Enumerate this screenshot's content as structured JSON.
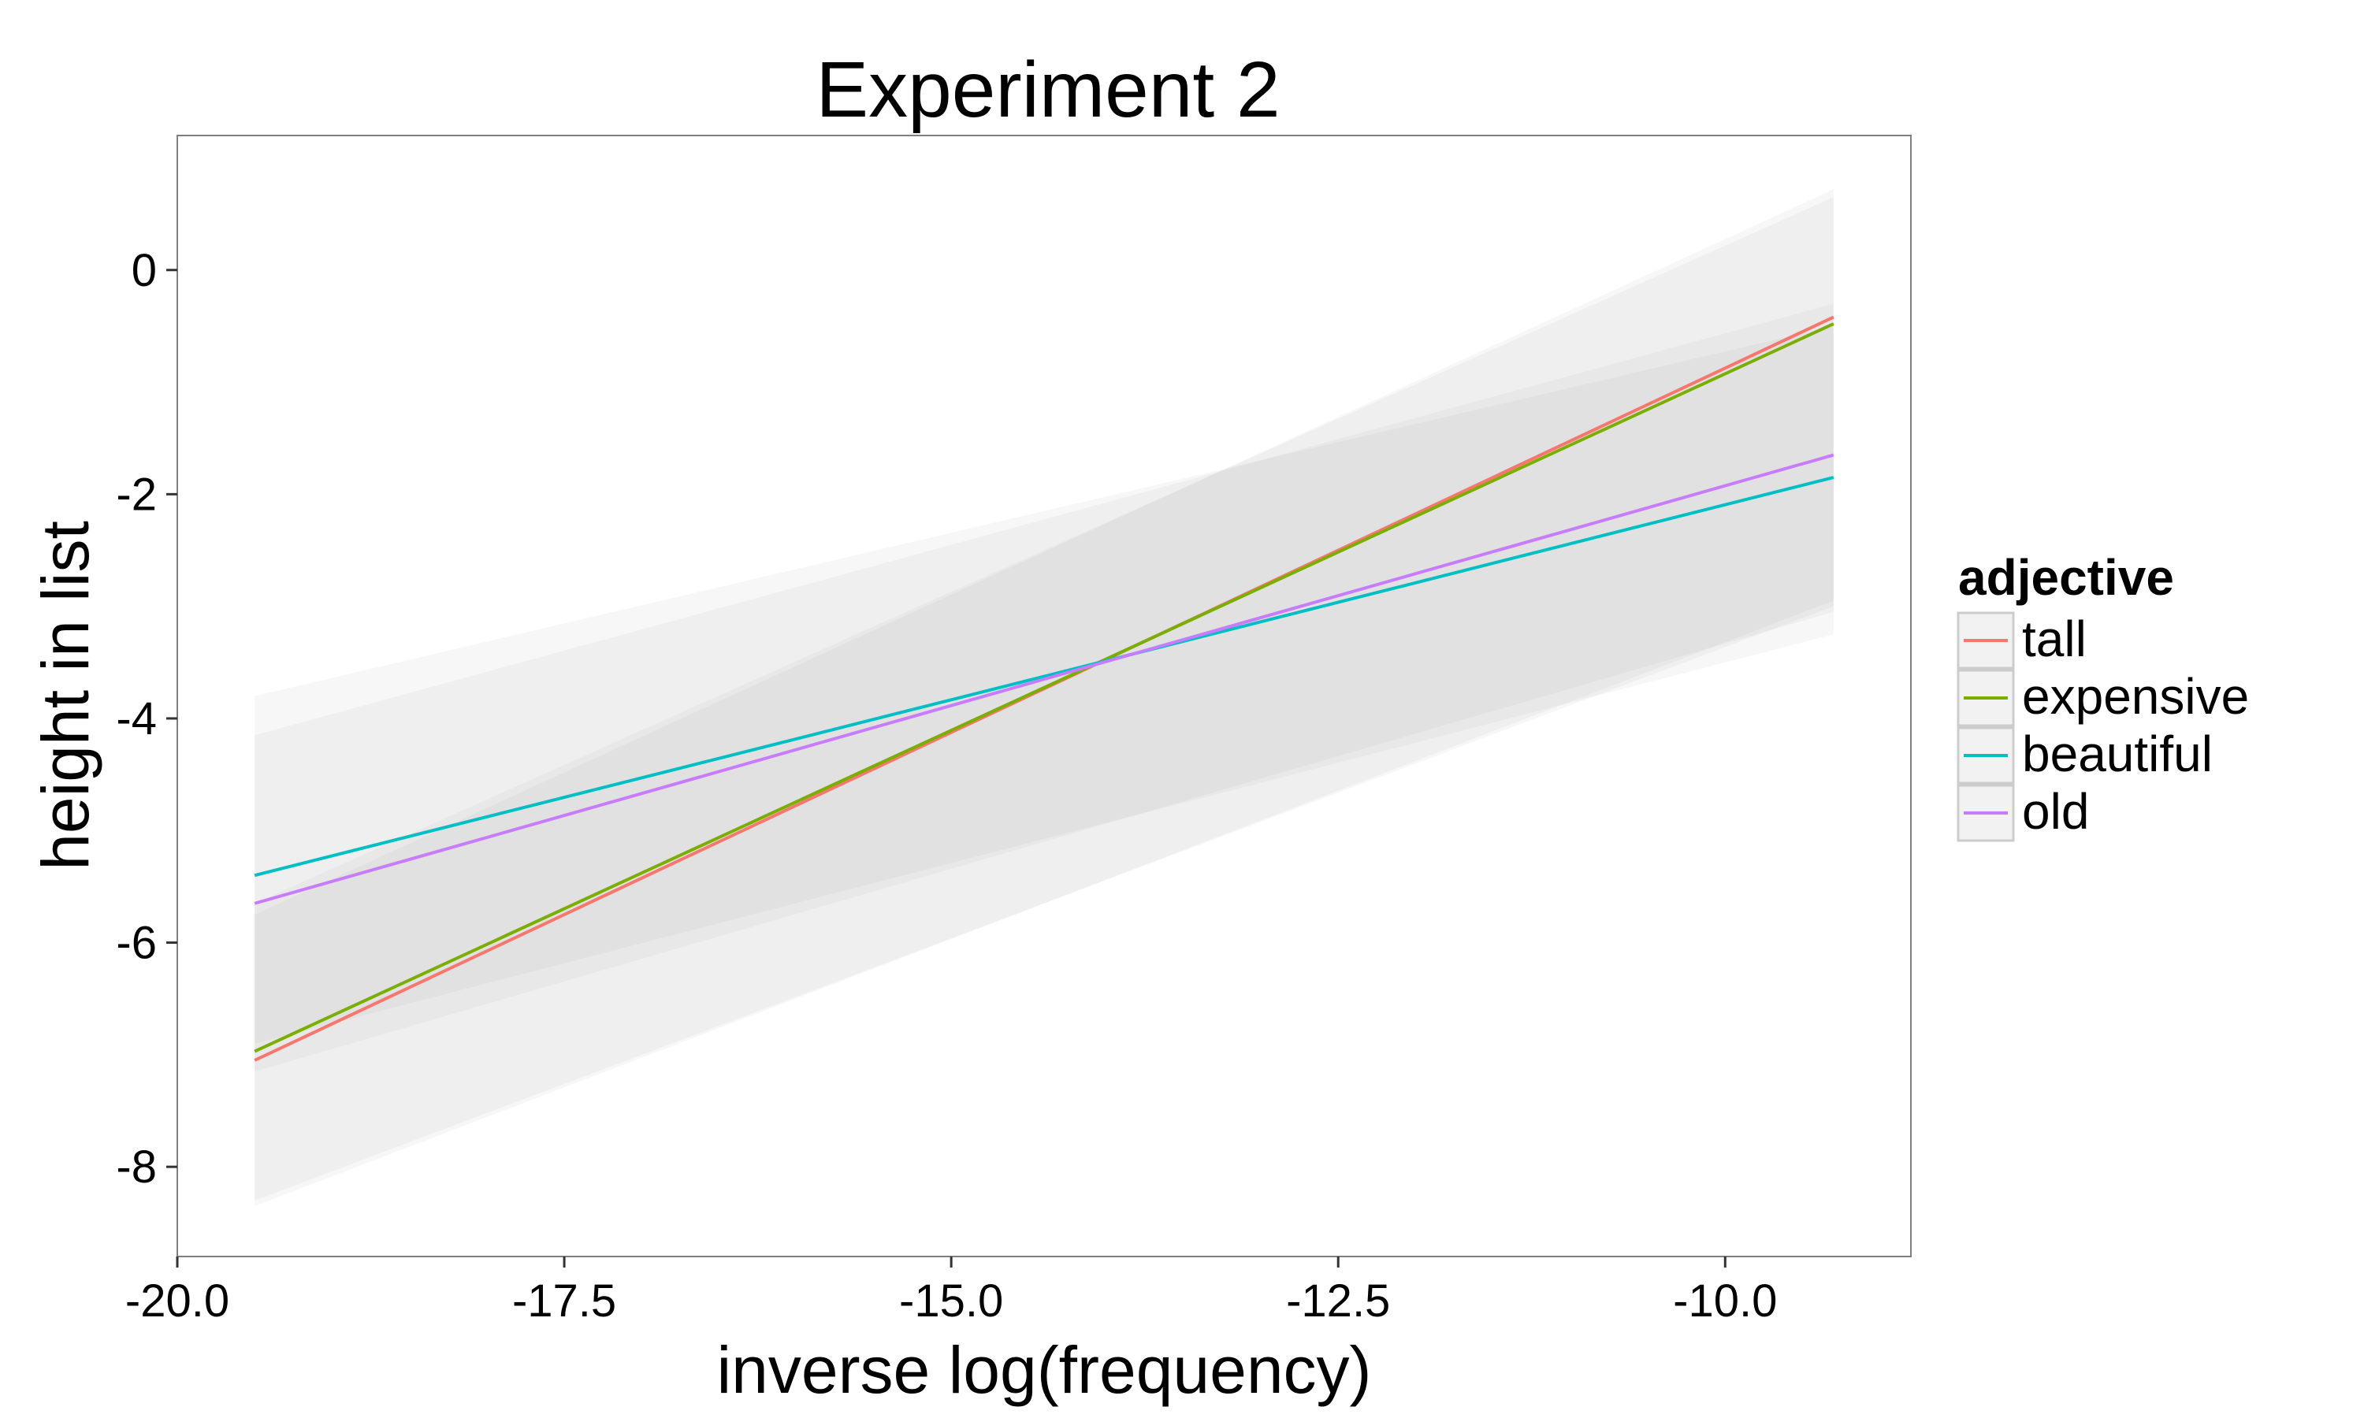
{
  "chart_data": {
    "type": "line",
    "title": "Experiment 2",
    "xlabel": "inverse log(frequency)",
    "ylabel": "height in list",
    "xlim": [
      -20.0,
      -8.8
    ],
    "ylim": [
      -8.8,
      1.2
    ],
    "x_ticks": [
      "-20.0",
      "-17.5",
      "-15.0",
      "-12.5",
      "-10.0"
    ],
    "x_tick_values": [
      -20.0,
      -17.5,
      -15.0,
      -12.5,
      -10.0
    ],
    "y_ticks": [
      "0",
      "-2",
      "-4",
      "-6",
      "-8"
    ],
    "y_tick_values": [
      0,
      -2,
      -4,
      -6,
      -8
    ],
    "grid": false,
    "legend": {
      "title": "adjective",
      "position": "right"
    },
    "series": [
      {
        "name": "tall",
        "color": "#F8766D",
        "x": [
          -19.5,
          -9.3
        ],
        "y": [
          -7.05,
          -0.42
        ],
        "ci_lower": [
          -8.35,
          -2.95
        ],
        "ci_upper": [
          -5.75,
          0.72
        ]
      },
      {
        "name": "expensive",
        "color": "#7CAE00",
        "x": [
          -19.5,
          -9.3
        ],
        "y": [
          -6.97,
          -0.48
        ],
        "ci_lower": [
          -8.3,
          -3.0
        ],
        "ci_upper": [
          -5.65,
          0.65
        ]
      },
      {
        "name": "beautiful",
        "color": "#00BFC4",
        "x": [
          -19.5,
          -9.3
        ],
        "y": [
          -5.4,
          -1.85
        ],
        "ci_lower": [
          -6.9,
          -3.25
        ],
        "ci_upper": [
          -3.8,
          -0.5
        ]
      },
      {
        "name": "old",
        "color": "#C77CFF",
        "x": [
          -19.5,
          -9.3
        ],
        "y": [
          -5.65,
          -1.65
        ],
        "ci_lower": [
          -7.15,
          -3.05
        ],
        "ci_upper": [
          -4.15,
          -0.3
        ]
      }
    ]
  }
}
